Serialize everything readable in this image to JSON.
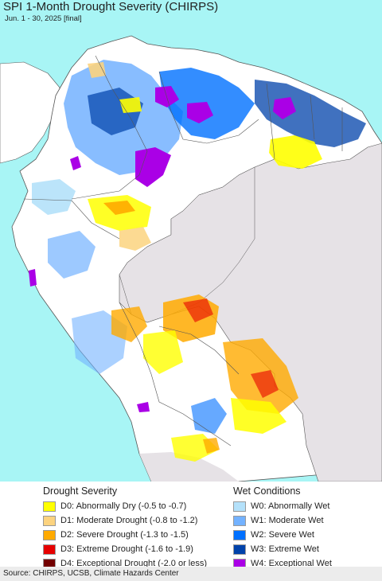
{
  "title": "SPI 1-Month Drought Severity (CHIRPS)",
  "subtitle": "Jun. 1 - 30, 2025 [final]",
  "source": "Source: CHIRPS, UCSB, Climate Hazards Center",
  "legend": {
    "drought": {
      "heading": "Drought Severity",
      "items": [
        {
          "label": "D0: Abnormally Dry (-0.5 to -0.7)",
          "color": "#ffff00"
        },
        {
          "label": "D1: Moderate Drought (-0.8 to -1.2)",
          "color": "#fcd37f"
        },
        {
          "label": "D2: Severe Drought (-1.3 to -1.5)",
          "color": "#ffaa00"
        },
        {
          "label": "D3: Extreme Drought (-1.6 to -1.9)",
          "color": "#e60000"
        },
        {
          "label": "D4: Exceptional Drought (-2.0 or less)",
          "color": "#730000"
        }
      ]
    },
    "wet": {
      "heading": "Wet Conditions",
      "items": [
        {
          "label": "W0: Abnormally Wet",
          "color": "#b4e1fa"
        },
        {
          "label": "W1: Moderate Wet",
          "color": "#73b2ff"
        },
        {
          "label": "W2: Severe Wet",
          "color": "#0070ff"
        },
        {
          "label": "W3: Extreme Wet",
          "color": "#0042aa"
        },
        {
          "label": "W4: Exceptional Wet",
          "color": "#aa00e6"
        }
      ]
    }
  },
  "colors": {
    "ocean": "#a8f5f5",
    "outside_region": "#e6e2e6",
    "land": "#ffffff",
    "border": "#555555"
  }
}
